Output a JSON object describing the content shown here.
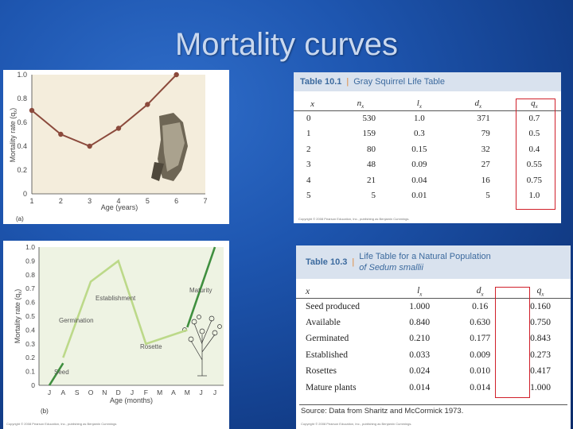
{
  "title": "Mortality curves",
  "figure_a": {
    "panel_label": "(a)",
    "ylabel": "Mortality rate (q",
    "ylabel_sub": "x",
    "ylabel_end": ")",
    "xlabel": "Age (years)",
    "copyright": "Copyright © 2008 Pearson Education, Inc., publishing as Benjamin Cummings"
  },
  "figure_b": {
    "panel_label": "(b)",
    "ylabel": "Mortality rate (q",
    "ylabel_sub": "x",
    "ylabel_end": ")",
    "xlabel": "Age (months)",
    "copyright": "Copyright © 2008 Pearson Education, Inc., publishing as Benjamin Cummings",
    "annotations": {
      "seed": "Seed",
      "germination": "Germination",
      "establishment": "Establishment",
      "rosette": "Rosette",
      "maturity": "Maturity"
    }
  },
  "table_101": {
    "number": "Table 10.1",
    "title": "Gray Squirrel Life Table",
    "headers": [
      "x",
      "nx",
      "lx",
      "dx",
      "qx"
    ],
    "rows": [
      [
        "0",
        "530",
        "1.0",
        "371",
        "0.7"
      ],
      [
        "1",
        "159",
        "0.3",
        "79",
        "0.5"
      ],
      [
        "2",
        "80",
        "0.15",
        "32",
        "0.4"
      ],
      [
        "3",
        "48",
        "0.09",
        "27",
        "0.55"
      ],
      [
        "4",
        "21",
        "0.04",
        "16",
        "0.75"
      ],
      [
        "5",
        "5",
        "0.01",
        "5",
        "1.0"
      ]
    ],
    "copyright": "Copyright © 2008 Pearson Education, Inc., publishing as Benjamin Cummings."
  },
  "table_103": {
    "number": "Table 10.3",
    "title_line1": "Life Table for a Natural Population",
    "title_line2": "of Sedum smallii",
    "headers": [
      "x",
      "lx",
      "dx",
      "qx"
    ],
    "rows": [
      [
        "Seed produced",
        "1.000",
        "0.16",
        "0.160"
      ],
      [
        "Available",
        "0.840",
        "0.630",
        "0.750"
      ],
      [
        "Germinated",
        "0.210",
        "0.177",
        "0.843"
      ],
      [
        "Established",
        "0.033",
        "0.009",
        "0.273"
      ],
      [
        "Rosettes",
        "0.024",
        "0.010",
        "0.417"
      ],
      [
        "Mature plants",
        "0.014",
        "0.014",
        "1.000"
      ]
    ],
    "source": "Source: Data from Sharitz and McCormick 1973.",
    "copyright": "Copyright © 2008 Pearson Education, Inc., publishing as Benjamin Cummings."
  },
  "chart_data": [
    {
      "type": "line",
      "xlabel": "Age (years)",
      "ylabel": "Mortality rate (qx)",
      "x": [
        1,
        2,
        3,
        4,
        5,
        6
      ],
      "series": [
        {
          "values": [
            0.7,
            0.5,
            0.4,
            0.55,
            0.75,
            1.0
          ],
          "color": "#8b4a3c"
        }
      ],
      "xlim": [
        1,
        7
      ],
      "ylim": [
        0,
        1.0
      ],
      "xticks": [
        "1",
        "2",
        "3",
        "4",
        "5",
        "6",
        "7"
      ],
      "yticks": [
        "0",
        "0.2",
        "0.4",
        "0.6",
        "0.8",
        "1.0"
      ],
      "background": "#f4eddc",
      "grid": false
    },
    {
      "type": "line",
      "xlabel": "Age (months)",
      "ylabel": "Mortality rate (qx)",
      "x": [
        "J",
        "A",
        "S",
        "O",
        "N",
        "D",
        "J",
        "F",
        "M",
        "A",
        "M",
        "J",
        "J"
      ],
      "series": [
        {
          "points": [
            [
              0,
              0.0
            ],
            [
              1,
              0.16
            ]
          ],
          "color": "#3f8f3f"
        },
        {
          "points": [
            [
              1,
              0.2
            ],
            [
              3,
              0.75
            ],
            [
              5,
              0.9
            ],
            [
              7,
              0.3
            ],
            [
              10,
              0.4
            ]
          ],
          "color": "#bcd989"
        },
        {
          "points": [
            [
              10,
              0.42
            ],
            [
              12,
              1.0
            ]
          ],
          "color": "#3f8f3f"
        }
      ],
      "ylim": [
        0,
        1.0
      ],
      "yticks": [
        "0",
        "0.1",
        "0.2",
        "0.3",
        "0.4",
        "0.5",
        "0.6",
        "0.7",
        "0.8",
        "0.9",
        "1.0"
      ],
      "background": "#eef3e3",
      "grid": false
    }
  ]
}
